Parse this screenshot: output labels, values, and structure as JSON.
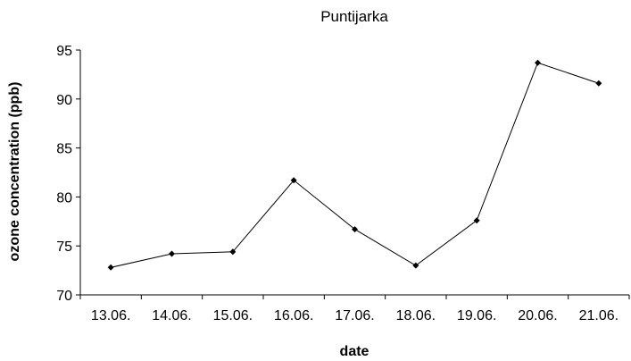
{
  "chart_data": {
    "type": "line",
    "title": "Puntijarka",
    "xlabel": "date",
    "ylabel": "ozone concentration (ppb)",
    "categories": [
      "13.06.",
      "14.06.",
      "15.06.",
      "16.06.",
      "17.06.",
      "18.06.",
      "19.06.",
      "20.06.",
      "21.06."
    ],
    "series": [
      {
        "values": [
          72.8,
          74.2,
          74.4,
          81.7,
          76.7,
          73.0,
          77.6,
          93.7,
          91.6
        ]
      }
    ],
    "ylim": [
      70,
      95
    ],
    "yticks": [
      "70",
      "75",
      "80",
      "85",
      "90",
      "95"
    ],
    "grid": false,
    "legend": "none",
    "colors": {
      "line": "#000000",
      "marker": "#000000",
      "axis": "#000000"
    }
  }
}
